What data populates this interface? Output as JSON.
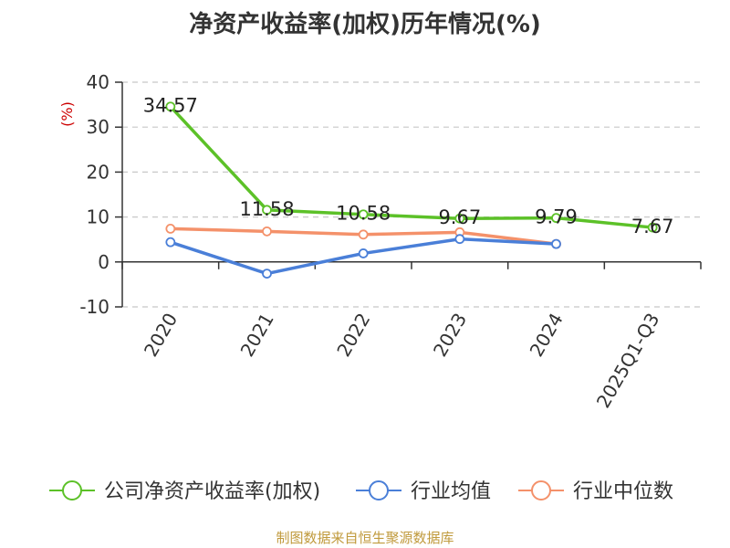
{
  "title": "净资产收益率(加权)历年情况(%)",
  "source": "制图数据来自恒生聚源数据库",
  "colors": {
    "company": "#5cc128",
    "industry_avg": "#4a7fd8",
    "industry_median": "#f4916a",
    "unit": "#cc0000",
    "source": "#c09a3c"
  },
  "chart_data": {
    "type": "line",
    "ylabel": "(%)",
    "ylim": [
      -10,
      40
    ],
    "yticks": [
      -10,
      0,
      10,
      20,
      30,
      40
    ],
    "categories": [
      "2020",
      "2021",
      "2022",
      "2023",
      "2024",
      "2025Q1-Q3"
    ],
    "grid": true,
    "legend": "bottom",
    "series": [
      {
        "name": "公司净资产收益率(加权)",
        "color_key": "company",
        "values": [
          34.57,
          11.58,
          10.58,
          9.67,
          9.79,
          7.67
        ],
        "labels": [
          "34.57",
          "11.58",
          "10.58",
          "9.67",
          "9.79",
          "7.67"
        ]
      },
      {
        "name": "行业均值",
        "color_key": "industry_avg",
        "values": [
          4.4,
          -2.6,
          1.9,
          5.1,
          4.0,
          null
        ]
      },
      {
        "name": "行业中位数",
        "color_key": "industry_median",
        "values": [
          7.4,
          6.8,
          6.1,
          6.6,
          4.0,
          null
        ]
      }
    ]
  }
}
